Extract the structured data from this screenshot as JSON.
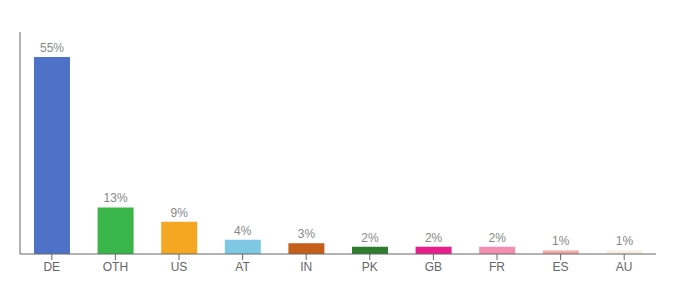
{
  "chart_data": {
    "type": "bar",
    "categories": [
      "DE",
      "OTH",
      "US",
      "AT",
      "IN",
      "PK",
      "GB",
      "FR",
      "ES",
      "AU"
    ],
    "values": [
      55,
      13,
      9,
      4,
      3,
      2,
      2,
      2,
      1,
      1
    ],
    "value_labels": [
      "55%",
      "13%",
      "9%",
      "4%",
      "3%",
      "2%",
      "2%",
      "2%",
      "1%",
      "1%"
    ],
    "colors": [
      "#4d72c8",
      "#3ab54a",
      "#f5a623",
      "#7ec8e3",
      "#c45e1a",
      "#2e7d2e",
      "#e91e8c",
      "#f48fb1",
      "#f4a7a7",
      "#f5f0e0"
    ],
    "ylim": [
      0,
      62
    ],
    "data_labels": true,
    "tick_labels": "x",
    "grid": false
  }
}
